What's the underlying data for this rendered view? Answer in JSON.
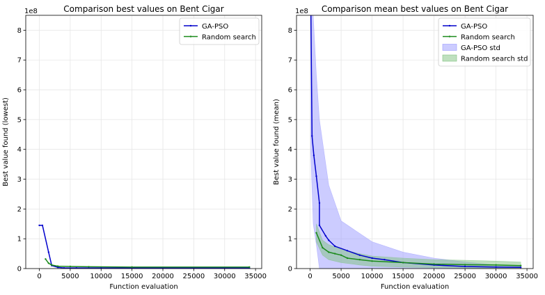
{
  "colors": {
    "ga_pso": "#0000cc",
    "random": "#1a8a1a",
    "ga_pso_band": "#9999ff",
    "random_band": "#7fc27f",
    "grid": "#e6e6e6"
  },
  "chart_data": [
    {
      "type": "line",
      "title": "Comparison best values on Bent Cigar",
      "xlabel": "Function evaluation",
      "ylabel": "Best value found (lowest)",
      "y_multiplier_label": "1e8",
      "xlim": [
        -2200,
        36000
      ],
      "ylim": [
        0,
        8.5
      ],
      "xticks": [
        0,
        5000,
        10000,
        15000,
        20000,
        25000,
        30000,
        35000
      ],
      "xtick_labels": [
        "0",
        "5000",
        "10000",
        "15000",
        "20000",
        "25000",
        "30000",
        "35000"
      ],
      "yticks": [
        0,
        1,
        2,
        3,
        4,
        5,
        6,
        7,
        8
      ],
      "ytick_labels": [
        "0",
        "1",
        "2",
        "3",
        "4",
        "5",
        "6",
        "7",
        "8"
      ],
      "grid": true,
      "legend": {
        "placement": "top-right",
        "entries": [
          "GA-PSO",
          "Random search"
        ]
      },
      "series": [
        {
          "name": "GA-PSO",
          "color_key": "ga_pso",
          "x": [
            0,
            500,
            1500,
            2000,
            3000,
            4000,
            6000,
            10000,
            20000,
            34000
          ],
          "y": [
            1.45,
            1.45,
            0.55,
            0.1,
            0.04,
            0.02,
            0.02,
            0.02,
            0.02,
            0.02
          ]
        },
        {
          "name": "Random search",
          "color_key": "random",
          "x": [
            1000,
            1500,
            2000,
            3000,
            5000,
            8000,
            15000,
            34000
          ],
          "y": [
            0.32,
            0.18,
            0.12,
            0.08,
            0.07,
            0.06,
            0.05,
            0.05
          ]
        }
      ]
    },
    {
      "type": "line",
      "title": "Comparison mean best values on Bent Cigar",
      "xlabel": "Function evaluation",
      "ylabel": "Best value found (mean)",
      "y_multiplier_label": "1e8",
      "xlim": [
        -2200,
        36000
      ],
      "ylim": [
        0,
        8.5
      ],
      "xticks": [
        0,
        5000,
        10000,
        15000,
        20000,
        25000,
        30000,
        35000
      ],
      "xtick_labels": [
        "0",
        "5000",
        "10000",
        "15000",
        "20000",
        "25000",
        "30000",
        "35000"
      ],
      "yticks": [
        0,
        1,
        2,
        3,
        4,
        5,
        6,
        7,
        8
      ],
      "ytick_labels": [
        "0",
        "1",
        "2",
        "3",
        "4",
        "5",
        "6",
        "7",
        "8"
      ],
      "grid": true,
      "legend": {
        "placement": "top-right",
        "entries": [
          "GA-PSO",
          "Random search",
          "GA-PSO std",
          "Random search std"
        ]
      },
      "series": [
        {
          "name": "GA-PSO",
          "color_key": "ga_pso",
          "x": [
            100,
            300,
            600,
            1000,
            1500,
            1500,
            2500,
            3000,
            4000,
            6000,
            8000,
            10000,
            12000,
            15000,
            20000,
            25000,
            30000,
            34000
          ],
          "y": [
            9.0,
            4.45,
            3.8,
            3.1,
            2.2,
            1.45,
            1.1,
            0.95,
            0.75,
            0.6,
            0.45,
            0.35,
            0.3,
            0.2,
            0.12,
            0.07,
            0.05,
            0.04
          ]
        },
        {
          "name": "Random search",
          "color_key": "random",
          "x": [
            1000,
            2000,
            3000,
            4000,
            5000,
            6000,
            8000,
            10000,
            15000,
            20000,
            25000,
            30000,
            34000
          ],
          "y": [
            1.2,
            0.7,
            0.55,
            0.5,
            0.45,
            0.35,
            0.3,
            0.25,
            0.2,
            0.15,
            0.13,
            0.12,
            0.1
          ]
        }
      ],
      "bands": [
        {
          "name": "GA-PSO std",
          "color_key": "ga_pso_band",
          "x": [
            100,
            500,
            1000,
            1500,
            3000,
            5000,
            10000,
            15000,
            20000,
            25000,
            30000,
            34000
          ],
          "upper": [
            8.5,
            8.5,
            6.5,
            5.0,
            2.8,
            1.6,
            0.9,
            0.55,
            0.35,
            0.22,
            0.12,
            0.1
          ],
          "lower": [
            3.9,
            1.5,
            0.8,
            0.0,
            0.0,
            0.0,
            0.0,
            0.0,
            0.0,
            0.0,
            0.0,
            0.0
          ]
        },
        {
          "name": "Random search std",
          "color_key": "random_band",
          "x": [
            1000,
            2000,
            3000,
            5000,
            8000,
            10000,
            15000,
            20000,
            25000,
            30000,
            34000
          ],
          "upper": [
            1.5,
            0.95,
            0.8,
            0.65,
            0.5,
            0.42,
            0.35,
            0.3,
            0.28,
            0.25,
            0.22
          ],
          "lower": [
            0.9,
            0.45,
            0.3,
            0.2,
            0.12,
            0.08,
            0.05,
            0.03,
            0.02,
            0.0,
            0.0
          ]
        }
      ]
    }
  ]
}
